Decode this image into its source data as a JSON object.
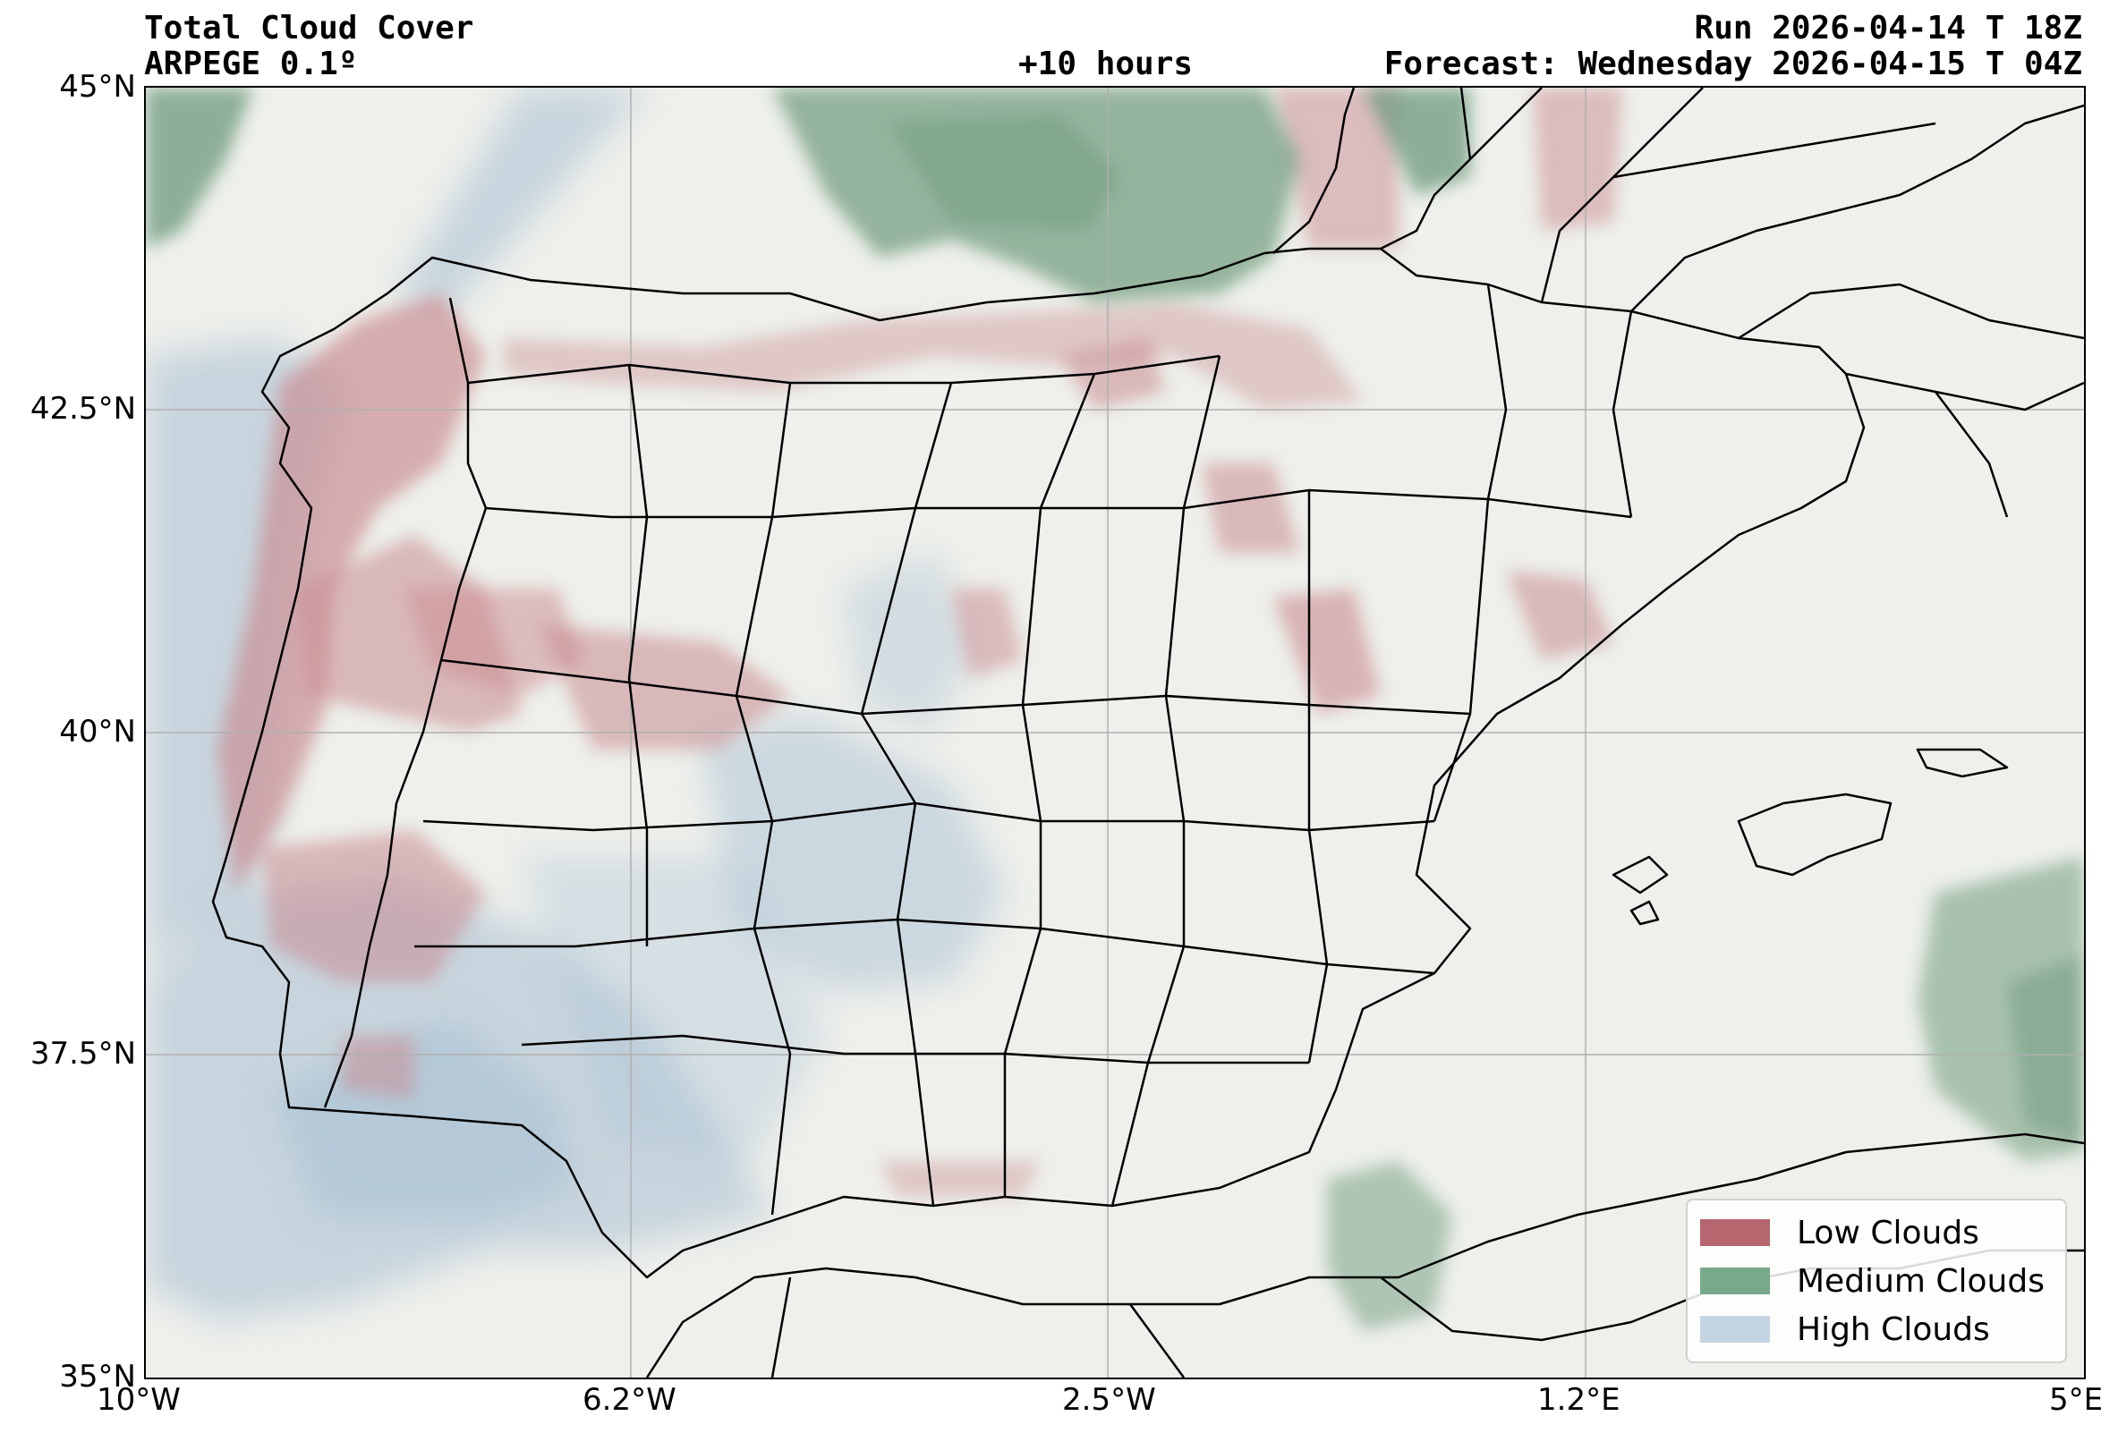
{
  "header": {
    "title": "Total Cloud Cover",
    "model": "ARPEGE 0.1º",
    "lead_time": "+10 hours",
    "run": "Run 2026-04-14 T 18Z",
    "forecast": "Forecast: Wednesday 2026-04-15 T 04Z"
  },
  "axes": {
    "lat_ticks": [
      "45°N",
      "42.5°N",
      "40°N",
      "37.5°N",
      "35°N"
    ],
    "lon_ticks": [
      "10°W",
      "6.2°W",
      "2.5°W",
      "1.2°E",
      "5°E"
    ]
  },
  "legend": {
    "items": [
      {
        "label": "Low Clouds",
        "color": "#b5666e"
      },
      {
        "label": "Medium Clouds",
        "color": "#78a98a"
      },
      {
        "label": "High Clouds",
        "color": "#c5d4e3"
      }
    ]
  },
  "colors": {
    "background": "#eef0eb",
    "low": "#c98a8f",
    "medium": "#6d9a7c",
    "high": "#a9c0d3",
    "grid": "#b0b0b0",
    "borders": "#000000"
  }
}
